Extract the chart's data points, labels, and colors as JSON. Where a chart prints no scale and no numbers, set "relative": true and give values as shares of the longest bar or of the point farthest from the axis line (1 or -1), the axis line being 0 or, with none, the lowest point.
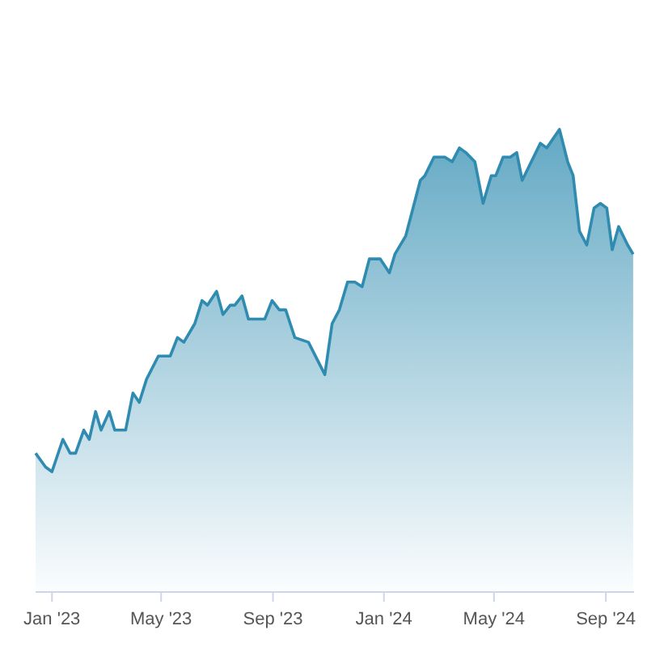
{
  "chart_data": {
    "type": "area",
    "relative": true,
    "x": [
      "2022-12-14",
      "2022-12-25",
      "2023-01-01",
      "2023-01-13",
      "2023-01-21",
      "2023-01-27",
      "2023-02-05",
      "2023-02-11",
      "2023-02-18",
      "2023-02-24",
      "2023-03-05",
      "2023-03-11",
      "2023-03-23",
      "2023-03-31",
      "2023-04-07",
      "2023-04-15",
      "2023-04-28",
      "2023-05-11",
      "2023-05-19",
      "2023-05-26",
      "2023-06-07",
      "2023-06-15",
      "2023-06-21",
      "2023-07-01",
      "2023-07-08",
      "2023-07-16",
      "2023-07-21",
      "2023-07-29",
      "2023-08-05",
      "2023-08-13",
      "2023-08-23",
      "2023-08-31",
      "2023-09-08",
      "2023-09-15",
      "2023-09-20",
      "2023-09-25",
      "2023-10-10",
      "2023-10-28",
      "2023-11-05",
      "2023-11-13",
      "2023-11-22",
      "2023-11-30",
      "2023-12-08",
      "2023-12-16",
      "2023-12-28",
      "2024-01-07",
      "2024-01-13",
      "2024-01-25",
      "2024-02-10",
      "2024-02-15",
      "2024-02-25",
      "2024-03-08",
      "2024-03-16",
      "2024-03-24",
      "2024-03-31",
      "2024-04-10",
      "2024-04-19",
      "2024-04-28",
      "2024-05-03",
      "2024-05-11",
      "2024-05-19",
      "2024-05-26",
      "2024-06-01",
      "2024-06-21",
      "2024-06-28",
      "2024-07-12",
      "2024-07-21",
      "2024-07-27",
      "2024-08-03",
      "2024-08-11",
      "2024-08-19",
      "2024-08-26",
      "2024-09-02",
      "2024-09-08",
      "2024-09-15",
      "2024-09-25",
      "2024-10-01"
    ],
    "values": [
      0.3,
      0.27,
      0.26,
      0.33,
      0.3,
      0.3,
      0.35,
      0.33,
      0.39,
      0.35,
      0.39,
      0.35,
      0.35,
      0.43,
      0.41,
      0.46,
      0.51,
      0.51,
      0.55,
      0.54,
      0.58,
      0.63,
      0.62,
      0.65,
      0.6,
      0.62,
      0.62,
      0.64,
      0.59,
      0.59,
      0.59,
      0.63,
      0.61,
      0.61,
      0.58,
      0.55,
      0.54,
      0.47,
      0.58,
      0.61,
      0.67,
      0.67,
      0.66,
      0.72,
      0.72,
      0.69,
      0.73,
      0.77,
      0.89,
      0.9,
      0.94,
      0.94,
      0.93,
      0.96,
      0.95,
      0.93,
      0.84,
      0.9,
      0.9,
      0.94,
      0.94,
      0.95,
      0.89,
      0.97,
      0.96,
      1,
      0.93,
      0.9,
      0.78,
      0.75,
      0.83,
      0.84,
      0.83,
      0.74,
      0.79,
      0.75,
      0.73
    ],
    "color": "#2f8cb0",
    "xlim": [
      "2022-12-14",
      "2024-10-02"
    ],
    "xticks": [
      {
        "value": "2023-01-01",
        "label": "Jan '23"
      },
      {
        "value": "2023-05-01",
        "label": "May '23"
      },
      {
        "value": "2023-09-01",
        "label": "Sep '23"
      },
      {
        "value": "2024-01-01",
        "label": "Jan '24"
      },
      {
        "value": "2024-05-01",
        "label": "May '24"
      },
      {
        "value": "2024-09-01",
        "label": "Sep '24"
      }
    ]
  }
}
